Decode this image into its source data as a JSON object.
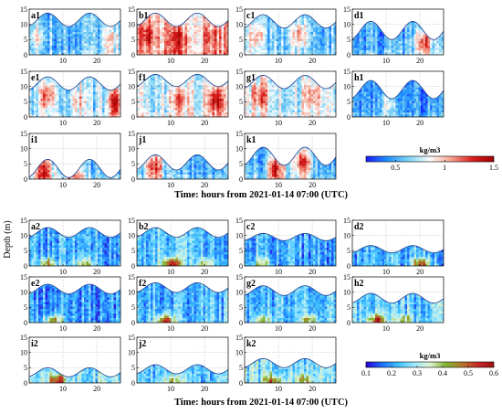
{
  "chart_data": {
    "type": "heatmap",
    "xlabel": "Time: hours from 2021-01-14 07:00 (UTC)",
    "ylabel": "Depth (m)",
    "xlim": [
      0,
      27
    ],
    "ylim": [
      0,
      15
    ],
    "x_ticks": [
      "10",
      "20"
    ],
    "y_ticks": [
      "0",
      "5",
      "10",
      "15"
    ],
    "colormaps": {
      "top": {
        "unit": "kg/m3",
        "ticks": [
          "0.5",
          "1",
          "1.5"
        ],
        "tick_values": [
          0.5,
          1,
          1.5
        ],
        "range": [
          0.2,
          1.5
        ],
        "colors": [
          "#1a1aff",
          "#1e90ff",
          "#7fd4f5",
          "#ffffff",
          "#f5a08c",
          "#dc1e1e",
          "#a00000"
        ]
      },
      "bottom": {
        "unit": "kg/m3",
        "ticks": [
          "0.1",
          "0.2",
          "0.3",
          "0.4",
          "0.5",
          "0.6"
        ],
        "tick_values": [
          0.1,
          0.2,
          0.3,
          0.4,
          0.5,
          0.6
        ],
        "range": [
          0.1,
          0.6
        ],
        "colors": [
          "#2600d9",
          "#1e6fff",
          "#3cc0ff",
          "#9ee8ff",
          "#e0f4d0",
          "#7fb432",
          "#b4782d",
          "#c82828",
          "#a01010"
        ]
      }
    },
    "panels": [
      {
        "label": "a1",
        "group": "top",
        "depth": {
          "mean": 11.5,
          "amp": 2.2
        },
        "mean_value": 0.55,
        "hotspots": [
          {
            "x": 2,
            "value": 0.9
          },
          {
            "x": 24,
            "value": 0.9
          }
        ]
      },
      {
        "label": "b1",
        "group": "top",
        "depth": {
          "mean": 11.5,
          "amp": 2.2
        },
        "mean_value": 0.95,
        "hotspots": [
          {
            "x": 3,
            "value": 1.35
          },
          {
            "x": 12,
            "value": 1.3
          },
          {
            "x": 22,
            "value": 1.2
          }
        ]
      },
      {
        "label": "c1",
        "group": "top",
        "depth": {
          "mean": 11.0,
          "amp": 2.2
        },
        "mean_value": 0.6,
        "hotspots": [
          {
            "x": 3,
            "value": 1.0
          },
          {
            "x": 16,
            "value": 1.1
          }
        ]
      },
      {
        "label": "d1",
        "group": "top",
        "depth": {
          "mean": 8.0,
          "amp": 3.0
        },
        "mean_value": 0.5,
        "hotspots": [
          {
            "x": 21,
            "value": 1.3
          }
        ]
      },
      {
        "label": "e1",
        "group": "top",
        "depth": {
          "mean": 11.0,
          "amp": 2.2
        },
        "mean_value": 0.65,
        "hotspots": [
          {
            "x": 5,
            "value": 1.2
          },
          {
            "x": 14,
            "value": 1.0
          },
          {
            "x": 25,
            "value": 1.35
          }
        ]
      },
      {
        "label": "f1",
        "group": "top",
        "depth": {
          "mean": 12.0,
          "amp": 2.0
        },
        "mean_value": 0.75,
        "hotspots": [
          {
            "x": 12,
            "value": 1.2
          },
          {
            "x": 23,
            "value": 1.35
          }
        ]
      },
      {
        "label": "g1",
        "group": "top",
        "depth": {
          "mean": 11.5,
          "amp": 2.2
        },
        "mean_value": 0.75,
        "hotspots": [
          {
            "x": 4,
            "value": 1.2
          },
          {
            "x": 20,
            "value": 1.1
          }
        ]
      },
      {
        "label": "h1",
        "group": "top",
        "depth": {
          "mean": 9.0,
          "amp": 3.0
        },
        "mean_value": 0.45,
        "hotspots": [
          {
            "x": 10,
            "value": 0.8
          }
        ]
      },
      {
        "label": "i1",
        "group": "top",
        "depth": {
          "mean": 3.5,
          "amp": 3.0
        },
        "mean_value": 0.6,
        "hotspots": [
          {
            "x": 4,
            "value": 1.35
          },
          {
            "x": 13,
            "value": 1.1
          }
        ]
      },
      {
        "label": "j1",
        "group": "top",
        "depth": {
          "mean": 5.5,
          "amp": 2.5
        },
        "mean_value": 0.55,
        "hotspots": [
          {
            "x": 5,
            "value": 1.2
          }
        ]
      },
      {
        "label": "k1",
        "group": "top",
        "depth": {
          "mean": 7.5,
          "amp": 3.0
        },
        "mean_value": 0.55,
        "hotspots": [
          {
            "x": 9,
            "value": 1.3
          },
          {
            "x": 17,
            "value": 1.2
          }
        ]
      },
      {
        "label": "a2",
        "group": "bottom",
        "depth": {
          "mean": 11.0,
          "amp": 1.6
        },
        "mean_value": 0.22,
        "hotspots": [
          {
            "x": 5,
            "value": 0.45
          },
          {
            "x": 16,
            "value": 0.4
          }
        ]
      },
      {
        "label": "b2",
        "group": "bottom",
        "depth": {
          "mean": 11.0,
          "amp": 1.6
        },
        "mean_value": 0.24,
        "hotspots": [
          {
            "x": 10,
            "value": 0.58
          },
          {
            "x": 20,
            "value": 0.42
          }
        ]
      },
      {
        "label": "c2",
        "group": "bottom",
        "depth": {
          "mean": 9.5,
          "amp": 1.2
        },
        "mean_value": 0.22,
        "hotspots": [
          {
            "x": 5,
            "value": 0.4
          }
        ]
      },
      {
        "label": "d2",
        "group": "bottom",
        "depth": {
          "mean": 5.5,
          "amp": 1.2
        },
        "mean_value": 0.22,
        "hotspots": [
          {
            "x": 20,
            "value": 0.5
          }
        ]
      },
      {
        "label": "e2",
        "group": "bottom",
        "depth": {
          "mean": 11.0,
          "amp": 1.6
        },
        "mean_value": 0.2,
        "hotspots": [
          {
            "x": 7,
            "value": 0.45
          }
        ]
      },
      {
        "label": "f2",
        "group": "bottom",
        "depth": {
          "mean": 11.5,
          "amp": 1.6
        },
        "mean_value": 0.23,
        "hotspots": [
          {
            "x": 8,
            "value": 0.55
          }
        ]
      },
      {
        "label": "g2",
        "group": "bottom",
        "depth": {
          "mean": 10.5,
          "amp": 1.6
        },
        "mean_value": 0.22,
        "hotspots": [
          {
            "x": 5,
            "value": 0.4
          },
          {
            "x": 19,
            "value": 0.42
          }
        ]
      },
      {
        "label": "h2",
        "group": "bottom",
        "depth": {
          "mean": 8.0,
          "amp": 1.6
        },
        "mean_value": 0.25,
        "hotspots": [
          {
            "x": 7,
            "value": 0.55
          },
          {
            "x": 15,
            "value": 0.4
          }
        ]
      },
      {
        "label": "i2",
        "group": "bottom",
        "depth": {
          "mean": 3.5,
          "amp": 1.5
        },
        "mean_value": 0.28,
        "hotspots": [
          {
            "x": 8,
            "value": 0.56
          }
        ]
      },
      {
        "label": "j2",
        "group": "bottom",
        "depth": {
          "mean": 4.5,
          "amp": 1.5
        },
        "mean_value": 0.24,
        "hotspots": [
          {
            "x": 10,
            "value": 0.4
          }
        ]
      },
      {
        "label": "k2",
        "group": "bottom",
        "depth": {
          "mean": 6.5,
          "amp": 1.5
        },
        "mean_value": 0.27,
        "hotspots": [
          {
            "x": 8,
            "value": 0.5
          },
          {
            "x": 17,
            "value": 0.45
          }
        ]
      }
    ]
  }
}
